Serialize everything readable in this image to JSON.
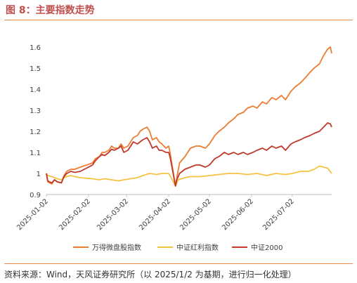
{
  "figure": {
    "title": "图 8：主要指数走势",
    "source": "资料来源：Wind，天风证券研究所（以 2025/1/2 为基期，进行归一化处理）"
  },
  "chart_data": {
    "type": "line",
    "title": "",
    "xlabel": "",
    "ylabel": "",
    "ylim": [
      0.9,
      1.6
    ],
    "yticks": [
      "1.6",
      "1.5",
      "1.4",
      "1.3",
      "1.2",
      "1.1",
      "1",
      "0.9"
    ],
    "xlim": [
      "2025-01-02",
      "2025-07-31"
    ],
    "xticks": [
      "2025-01-02",
      "2025-02-02",
      "2025-03-02",
      "2025-04-02",
      "2025-05-02",
      "2025-06-02",
      "2025-07-02"
    ],
    "grid": false,
    "legend_position": "bottom",
    "series": [
      {
        "name": "万得微盘股指数",
        "color": "#ed7d31",
        "points": [
          [
            "2025-01-02",
            1.0
          ],
          [
            "2025-01-03",
            0.96
          ],
          [
            "2025-01-06",
            0.95
          ],
          [
            "2025-01-08",
            0.97
          ],
          [
            "2025-01-10",
            0.96
          ],
          [
            "2025-01-13",
            0.955
          ],
          [
            "2025-01-15",
            0.99
          ],
          [
            "2025-01-17",
            1.01
          ],
          [
            "2025-01-20",
            1.02
          ],
          [
            "2025-01-23",
            1.02
          ],
          [
            "2025-01-27",
            1.03
          ],
          [
            "2025-02-05",
            1.05
          ],
          [
            "2025-02-07",
            1.07
          ],
          [
            "2025-02-10",
            1.08
          ],
          [
            "2025-02-12",
            1.1
          ],
          [
            "2025-02-14",
            1.1
          ],
          [
            "2025-02-17",
            1.11
          ],
          [
            "2025-02-19",
            1.13
          ],
          [
            "2025-02-21",
            1.12
          ],
          [
            "2025-02-24",
            1.12
          ],
          [
            "2025-02-26",
            1.14
          ],
          [
            "2025-02-28",
            1.12
          ],
          [
            "2025-03-03",
            1.13
          ],
          [
            "2025-03-05",
            1.15
          ],
          [
            "2025-03-07",
            1.17
          ],
          [
            "2025-03-10",
            1.18
          ],
          [
            "2025-03-12",
            1.2
          ],
          [
            "2025-03-14",
            1.21
          ],
          [
            "2025-03-17",
            1.22
          ],
          [
            "2025-03-19",
            1.2
          ],
          [
            "2025-03-21",
            1.16
          ],
          [
            "2025-03-24",
            1.17
          ],
          [
            "2025-03-26",
            1.15
          ],
          [
            "2025-03-28",
            1.14
          ],
          [
            "2025-03-31",
            1.12
          ],
          [
            "2025-04-02",
            1.13
          ],
          [
            "2025-04-03",
            1.1
          ],
          [
            "2025-04-07",
            0.94
          ],
          [
            "2025-04-08",
            0.98
          ],
          [
            "2025-04-10",
            1.05
          ],
          [
            "2025-04-14",
            1.08
          ],
          [
            "2025-04-16",
            1.1
          ],
          [
            "2025-04-18",
            1.12
          ],
          [
            "2025-04-22",
            1.13
          ],
          [
            "2025-04-25",
            1.13
          ],
          [
            "2025-04-29",
            1.12
          ],
          [
            "2025-05-02",
            1.14
          ],
          [
            "2025-05-06",
            1.18
          ],
          [
            "2025-05-09",
            1.2
          ],
          [
            "2025-05-13",
            1.22
          ],
          [
            "2025-05-16",
            1.24
          ],
          [
            "2025-05-20",
            1.26
          ],
          [
            "2025-05-23",
            1.28
          ],
          [
            "2025-05-27",
            1.29
          ],
          [
            "2025-05-30",
            1.31
          ],
          [
            "2025-06-03",
            1.32
          ],
          [
            "2025-06-06",
            1.31
          ],
          [
            "2025-06-10",
            1.34
          ],
          [
            "2025-06-13",
            1.33
          ],
          [
            "2025-06-17",
            1.36
          ],
          [
            "2025-06-20",
            1.35
          ],
          [
            "2025-06-24",
            1.37
          ],
          [
            "2025-06-27",
            1.35
          ],
          [
            "2025-07-01",
            1.39
          ],
          [
            "2025-07-04",
            1.41
          ],
          [
            "2025-07-08",
            1.43
          ],
          [
            "2025-07-11",
            1.45
          ],
          [
            "2025-07-15",
            1.48
          ],
          [
            "2025-07-18",
            1.5
          ],
          [
            "2025-07-22",
            1.52
          ],
          [
            "2025-07-25",
            1.56
          ],
          [
            "2025-07-28",
            1.59
          ],
          [
            "2025-07-30",
            1.6
          ],
          [
            "2025-07-31",
            1.57
          ]
        ]
      },
      {
        "name": "中证红利指数",
        "color": "#f5c242",
        "points": [
          [
            "2025-01-02",
            1.0
          ],
          [
            "2025-01-03",
            0.99
          ],
          [
            "2025-01-06",
            0.985
          ],
          [
            "2025-01-08",
            0.98
          ],
          [
            "2025-01-10",
            0.975
          ],
          [
            "2025-01-13",
            0.97
          ],
          [
            "2025-01-15",
            0.98
          ],
          [
            "2025-01-17",
            0.985
          ],
          [
            "2025-01-20",
            0.99
          ],
          [
            "2025-01-23",
            0.985
          ],
          [
            "2025-01-27",
            0.98
          ],
          [
            "2025-02-05",
            0.975
          ],
          [
            "2025-02-10",
            0.97
          ],
          [
            "2025-02-14",
            0.975
          ],
          [
            "2025-02-19",
            0.97
          ],
          [
            "2025-02-24",
            0.965
          ],
          [
            "2025-02-28",
            0.97
          ],
          [
            "2025-03-05",
            0.975
          ],
          [
            "2025-03-10",
            0.98
          ],
          [
            "2025-03-14",
            0.99
          ],
          [
            "2025-03-19",
            1.0
          ],
          [
            "2025-03-24",
            0.995
          ],
          [
            "2025-03-28",
            1.0
          ],
          [
            "2025-04-02",
            1.0
          ],
          [
            "2025-04-03",
            0.99
          ],
          [
            "2025-04-07",
            0.94
          ],
          [
            "2025-04-09",
            0.97
          ],
          [
            "2025-04-14",
            0.98
          ],
          [
            "2025-04-18",
            0.985
          ],
          [
            "2025-04-25",
            0.985
          ],
          [
            "2025-05-02",
            0.99
          ],
          [
            "2025-05-09",
            0.995
          ],
          [
            "2025-05-16",
            1.0
          ],
          [
            "2025-05-23",
            1.0
          ],
          [
            "2025-05-30",
            0.995
          ],
          [
            "2025-06-06",
            1.0
          ],
          [
            "2025-06-13",
            0.99
          ],
          [
            "2025-06-20",
            1.0
          ],
          [
            "2025-06-27",
            0.995
          ],
          [
            "2025-07-02",
            1.0
          ],
          [
            "2025-07-08",
            1.01
          ],
          [
            "2025-07-14",
            1.01
          ],
          [
            "2025-07-18",
            1.02
          ],
          [
            "2025-07-22",
            1.035
          ],
          [
            "2025-07-25",
            1.03
          ],
          [
            "2025-07-28",
            1.025
          ],
          [
            "2025-07-31",
            1.0
          ]
        ]
      },
      {
        "name": "中证2000",
        "color": "#c0392b",
        "points": [
          [
            "2025-01-02",
            1.0
          ],
          [
            "2025-01-03",
            0.965
          ],
          [
            "2025-01-06",
            0.955
          ],
          [
            "2025-01-08",
            0.97
          ],
          [
            "2025-01-10",
            0.96
          ],
          [
            "2025-01-13",
            0.955
          ],
          [
            "2025-01-15",
            0.985
          ],
          [
            "2025-01-17",
            1.0
          ],
          [
            "2025-01-20",
            1.01
          ],
          [
            "2025-01-23",
            1.005
          ],
          [
            "2025-01-27",
            1.01
          ],
          [
            "2025-02-05",
            1.04
          ],
          [
            "2025-02-07",
            1.06
          ],
          [
            "2025-02-10",
            1.08
          ],
          [
            "2025-02-12",
            1.09
          ],
          [
            "2025-02-14",
            1.085
          ],
          [
            "2025-02-17",
            1.1
          ],
          [
            "2025-02-19",
            1.115
          ],
          [
            "2025-02-21",
            1.11
          ],
          [
            "2025-02-24",
            1.12
          ],
          [
            "2025-02-26",
            1.13
          ],
          [
            "2025-02-28",
            1.1
          ],
          [
            "2025-03-03",
            1.11
          ],
          [
            "2025-03-05",
            1.13
          ],
          [
            "2025-03-07",
            1.15
          ],
          [
            "2025-03-10",
            1.14
          ],
          [
            "2025-03-12",
            1.15
          ],
          [
            "2025-03-14",
            1.16
          ],
          [
            "2025-03-17",
            1.17
          ],
          [
            "2025-03-19",
            1.15
          ],
          [
            "2025-03-21",
            1.12
          ],
          [
            "2025-03-24",
            1.13
          ],
          [
            "2025-03-26",
            1.11
          ],
          [
            "2025-03-28",
            1.11
          ],
          [
            "2025-03-31",
            1.1
          ],
          [
            "2025-04-02",
            1.1
          ],
          [
            "2025-04-03",
            1.08
          ],
          [
            "2025-04-07",
            0.94
          ],
          [
            "2025-04-08",
            0.97
          ],
          [
            "2025-04-10",
            1.0
          ],
          [
            "2025-04-14",
            1.02
          ],
          [
            "2025-04-18",
            1.03
          ],
          [
            "2025-04-22",
            1.04
          ],
          [
            "2025-04-25",
            1.04
          ],
          [
            "2025-04-29",
            1.03
          ],
          [
            "2025-05-02",
            1.04
          ],
          [
            "2025-05-06",
            1.07
          ],
          [
            "2025-05-09",
            1.08
          ],
          [
            "2025-05-13",
            1.1
          ],
          [
            "2025-05-16",
            1.09
          ],
          [
            "2025-05-20",
            1.1
          ],
          [
            "2025-05-23",
            1.09
          ],
          [
            "2025-05-27",
            1.1
          ],
          [
            "2025-05-30",
            1.09
          ],
          [
            "2025-06-03",
            1.1
          ],
          [
            "2025-06-06",
            1.11
          ],
          [
            "2025-06-10",
            1.12
          ],
          [
            "2025-06-13",
            1.11
          ],
          [
            "2025-06-17",
            1.13
          ],
          [
            "2025-06-20",
            1.12
          ],
          [
            "2025-06-24",
            1.13
          ],
          [
            "2025-06-27",
            1.11
          ],
          [
            "2025-07-01",
            1.14
          ],
          [
            "2025-07-04",
            1.15
          ],
          [
            "2025-07-08",
            1.16
          ],
          [
            "2025-07-11",
            1.17
          ],
          [
            "2025-07-15",
            1.18
          ],
          [
            "2025-07-18",
            1.19
          ],
          [
            "2025-07-22",
            1.2
          ],
          [
            "2025-07-25",
            1.22
          ],
          [
            "2025-07-28",
            1.24
          ],
          [
            "2025-07-30",
            1.235
          ],
          [
            "2025-07-31",
            1.22
          ]
        ]
      }
    ]
  }
}
